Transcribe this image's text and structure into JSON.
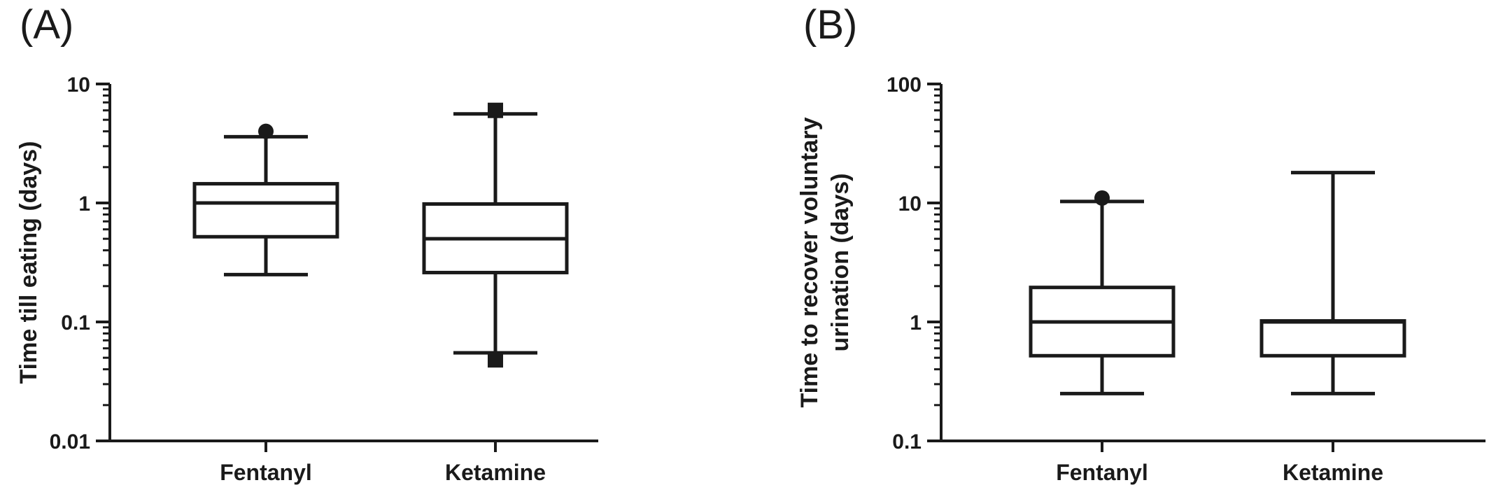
{
  "chart_data": [
    {
      "panel_label": "(A)",
      "type": "box",
      "scale": "log",
      "ylim": [
        0.01,
        10
      ],
      "ticks": [
        0.01,
        0.1,
        1,
        10
      ],
      "tick_labels": [
        "0.01",
        "0.1",
        "1",
        "10"
      ],
      "ylabel_lines": [
        "Time till eating (days)"
      ],
      "categories": [
        "Fentanyl",
        "Ketamine"
      ],
      "boxes": [
        {
          "min": 0.25,
          "q1": 0.52,
          "median": 1.0,
          "q3": 1.45,
          "max": 3.6,
          "outliers": [
            {
              "value": 4.0,
              "marker": "circle"
            }
          ]
        },
        {
          "min": 0.055,
          "q1": 0.26,
          "median": 0.5,
          "q3": 0.98,
          "max": 5.6,
          "outliers": [
            {
              "value": 6.0,
              "marker": "square"
            },
            {
              "value": 0.048,
              "marker": "square"
            }
          ]
        }
      ]
    },
    {
      "panel_label": "(B)",
      "type": "box",
      "scale": "log",
      "ylim": [
        0.1,
        100
      ],
      "ticks": [
        0.1,
        1,
        10,
        100
      ],
      "tick_labels": [
        "0.1",
        "1",
        "10",
        "100"
      ],
      "ylabel_lines": [
        "Time to recover voluntary",
        "urination (days)"
      ],
      "categories": [
        "Fentanyl",
        "Ketamine"
      ],
      "boxes": [
        {
          "min": 0.25,
          "q1": 0.52,
          "median": 1.0,
          "q3": 1.95,
          "max": 10.3,
          "outliers": [
            {
              "value": 11.0,
              "marker": "circle"
            }
          ]
        },
        {
          "min": 0.25,
          "q1": 0.52,
          "median": 1.0,
          "q3": 1.02,
          "max": 18.0,
          "outliers": []
        }
      ]
    }
  ],
  "style": {
    "stroke": "#1a1a1a",
    "background": "#ffffff"
  }
}
